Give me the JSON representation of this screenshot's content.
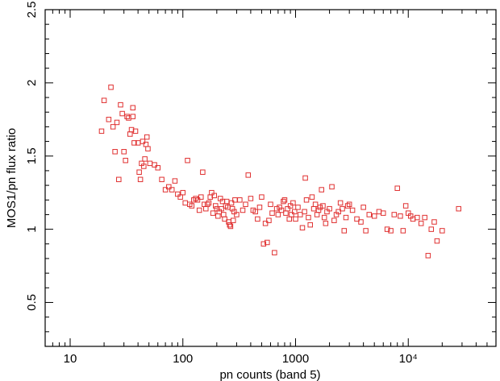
{
  "chart_data": {
    "type": "scatter",
    "xlabel": "pn counts (band 5)",
    "ylabel": "MOS1/pn  flux ratio",
    "xscale": "log",
    "xlim": [
      6,
      60000
    ],
    "ylim": [
      0.2,
      2.5
    ],
    "x_ticks": [
      {
        "value": 10,
        "label": "10"
      },
      {
        "value": 100,
        "label": "100"
      },
      {
        "value": 1000,
        "label": "1000"
      },
      {
        "value": 10000,
        "label": "10⁴"
      }
    ],
    "y_ticks": [
      {
        "value": 0.5,
        "label": "0.5"
      },
      {
        "value": 1,
        "label": "1"
      },
      {
        "value": 1.5,
        "label": "1.5"
      },
      {
        "value": 2,
        "label": "2"
      },
      {
        "value": 2.5,
        "label": "2.5"
      }
    ],
    "marker": "open-square",
    "color": "#e03030",
    "grid": false,
    "legend": "none",
    "points": [
      [
        19,
        1.67
      ],
      [
        20,
        1.88
      ],
      [
        22,
        1.75
      ],
      [
        23,
        1.97
      ],
      [
        24,
        1.7
      ],
      [
        25,
        1.53
      ],
      [
        26,
        1.73
      ],
      [
        27,
        1.34
      ],
      [
        28,
        1.85
      ],
      [
        29,
        1.79
      ],
      [
        30,
        1.53
      ],
      [
        31,
        1.47
      ],
      [
        32,
        1.77
      ],
      [
        33,
        1.76
      ],
      [
        34,
        1.65
      ],
      [
        35,
        1.68
      ],
      [
        36,
        1.77
      ],
      [
        36,
        1.83
      ],
      [
        37,
        1.59
      ],
      [
        38,
        1.67
      ],
      [
        40,
        1.59
      ],
      [
        41,
        1.39
      ],
      [
        42,
        1.34
      ],
      [
        43,
        1.45
      ],
      [
        44,
        1.6
      ],
      [
        45,
        1.43
      ],
      [
        46,
        1.48
      ],
      [
        47,
        1.58
      ],
      [
        48,
        1.63
      ],
      [
        49,
        1.55
      ],
      [
        51,
        1.45
      ],
      [
        56,
        1.44
      ],
      [
        60,
        1.42
      ],
      [
        65,
        1.34
      ],
      [
        70,
        1.27
      ],
      [
        75,
        1.29
      ],
      [
        80,
        1.27
      ],
      [
        85,
        1.33
      ],
      [
        90,
        1.24
      ],
      [
        95,
        1.22
      ],
      [
        100,
        1.25
      ],
      [
        105,
        1.18
      ],
      [
        110,
        1.47
      ],
      [
        115,
        1.17
      ],
      [
        120,
        1.16
      ],
      [
        125,
        1.2
      ],
      [
        130,
        1.21
      ],
      [
        135,
        1.2
      ],
      [
        140,
        1.13
      ],
      [
        145,
        1.22
      ],
      [
        150,
        1.39
      ],
      [
        155,
        1.17
      ],
      [
        160,
        1.14
      ],
      [
        165,
        1.17
      ],
      [
        170,
        1.18
      ],
      [
        175,
        1.22
      ],
      [
        180,
        1.25
      ],
      [
        185,
        1.11
      ],
      [
        190,
        1.23
      ],
      [
        195,
        1.16
      ],
      [
        200,
        1.14
      ],
      [
        205,
        1.09
      ],
      [
        210,
        1.12
      ],
      [
        215,
        1.21
      ],
      [
        220,
        1.14
      ],
      [
        225,
        1.19
      ],
      [
        230,
        1.1
      ],
      [
        235,
        1.07
      ],
      [
        240,
        1.16
      ],
      [
        245,
        1.19
      ],
      [
        250,
        1.15
      ],
      [
        255,
        1.05
      ],
      [
        260,
        1.03
      ],
      [
        265,
        1.02
      ],
      [
        270,
        1.18
      ],
      [
        275,
        1.14
      ],
      [
        280,
        1.06
      ],
      [
        285,
        1.12
      ],
      [
        290,
        1.2
      ],
      [
        300,
        1.1
      ],
      [
        320,
        1.2
      ],
      [
        340,
        1.13
      ],
      [
        360,
        1.17
      ],
      [
        380,
        1.37
      ],
      [
        400,
        1.21
      ],
      [
        420,
        1.13
      ],
      [
        440,
        1.12
      ],
      [
        460,
        1.07
      ],
      [
        480,
        1.15
      ],
      [
        500,
        1.22
      ],
      [
        520,
        0.9
      ],
      [
        540,
        1.04
      ],
      [
        560,
        0.91
      ],
      [
        580,
        1.06
      ],
      [
        600,
        1.17
      ],
      [
        620,
        1.11
      ],
      [
        650,
        0.84
      ],
      [
        680,
        1.14
      ],
      [
        700,
        1.1
      ],
      [
        720,
        1.15
      ],
      [
        750,
        1.13
      ],
      [
        780,
        1.19
      ],
      [
        800,
        1.2
      ],
      [
        820,
        1.11
      ],
      [
        850,
        1.14
      ],
      [
        880,
        1.07
      ],
      [
        900,
        1.16
      ],
      [
        920,
        1.1
      ],
      [
        950,
        1.18
      ],
      [
        980,
        1.12
      ],
      [
        1000,
        1.07
      ],
      [
        1050,
        1.15
      ],
      [
        1100,
        1.1
      ],
      [
        1150,
        1.01
      ],
      [
        1200,
        1.12
      ],
      [
        1220,
        1.35
      ],
      [
        1250,
        1.2
      ],
      [
        1300,
        1.08
      ],
      [
        1350,
        1.03
      ],
      [
        1400,
        1.22
      ],
      [
        1450,
        1.14
      ],
      [
        1500,
        1.17
      ],
      [
        1550,
        1.1
      ],
      [
        1600,
        1.13
      ],
      [
        1650,
        1.15
      ],
      [
        1700,
        1.27
      ],
      [
        1750,
        1.16
      ],
      [
        1800,
        1.08
      ],
      [
        1850,
        1.04
      ],
      [
        1900,
        1.12
      ],
      [
        2000,
        1.14
      ],
      [
        2100,
        1.29
      ],
      [
        2200,
        1.06
      ],
      [
        2300,
        1.1
      ],
      [
        2400,
        1.12
      ],
      [
        2500,
        1.18
      ],
      [
        2600,
        1.14
      ],
      [
        2700,
        0.99
      ],
      [
        2800,
        1.08
      ],
      [
        2900,
        1.16
      ],
      [
        3000,
        1.17
      ],
      [
        3200,
        1.13
      ],
      [
        3500,
        1.07
      ],
      [
        3800,
        1.05
      ],
      [
        4000,
        1.15
      ],
      [
        4200,
        0.99
      ],
      [
        4500,
        1.1
      ],
      [
        5000,
        1.09
      ],
      [
        5500,
        1.12
      ],
      [
        6000,
        1.11
      ],
      [
        6500,
        1.0
      ],
      [
        7000,
        0.99
      ],
      [
        7500,
        1.1
      ],
      [
        8000,
        1.28
      ],
      [
        8500,
        1.09
      ],
      [
        9000,
        0.99
      ],
      [
        9500,
        1.16
      ],
      [
        10000,
        1.11
      ],
      [
        10500,
        1.09
      ],
      [
        11000,
        1.07
      ],
      [
        12000,
        1.08
      ],
      [
        13000,
        1.04
      ],
      [
        14000,
        1.08
      ],
      [
        15000,
        0.82
      ],
      [
        16000,
        1.0
      ],
      [
        17000,
        1.05
      ],
      [
        18000,
        0.92
      ],
      [
        20000,
        0.99
      ],
      [
        28000,
        1.14
      ]
    ]
  }
}
